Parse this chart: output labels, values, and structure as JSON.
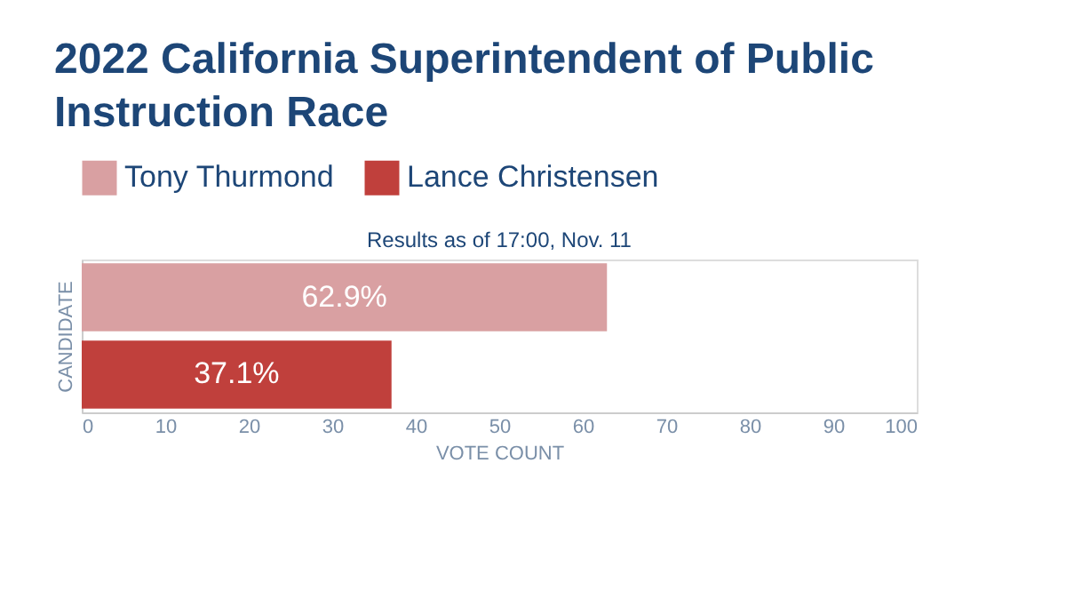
{
  "chart_data": {
    "type": "bar",
    "orientation": "horizontal",
    "title": "2022 California Superintendent of Public Instruction Race",
    "subtitle": "Results as of 17:00, Nov. 11",
    "xlabel": "VOTE COUNT",
    "ylabel": "CANDIDATE",
    "categories": [
      null,
      null
    ],
    "series": [
      {
        "name": "Tony Thurmond",
        "color": "#d9a0a2",
        "values": [
          62.9,
          null
        ],
        "value_labels": [
          "62.9%",
          null
        ]
      },
      {
        "name": "Lance Christensen",
        "color": "#c0403c",
        "values": [
          null,
          37.1
        ],
        "value_labels": [
          null,
          "37.1%"
        ]
      }
    ],
    "xlim": [
      0,
      100
    ],
    "xticks": [
      0,
      10,
      20,
      30,
      40,
      50,
      60,
      70,
      80,
      90,
      100
    ],
    "grid": false,
    "legend": "top",
    "tick_labels": "x"
  }
}
